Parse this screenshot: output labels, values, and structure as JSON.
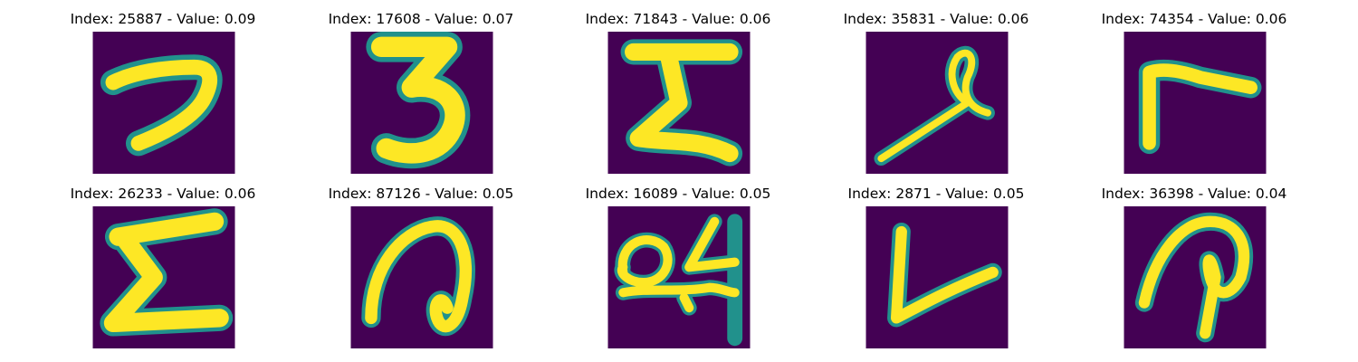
{
  "colors": {
    "background": "#440154",
    "mid": "#21918c",
    "stroke": "#fde725"
  },
  "panels": [
    {
      "index": "25887",
      "value": "0.09",
      "title": "Index: 25887 - Value: 0.09",
      "glyph": "7"
    },
    {
      "index": "17608",
      "value": "0.07",
      "title": "Index: 17608 - Value: 0.07",
      "glyph": "3"
    },
    {
      "index": "71843",
      "value": "0.06",
      "title": "Index: 71843 - Value: 0.06",
      "glyph": "sigma-bar"
    },
    {
      "index": "35831",
      "value": "0.06",
      "title": "Index: 35831 - Value: 0.06",
      "glyph": "loop-stroke"
    },
    {
      "index": "74354",
      "value": "0.06",
      "title": "Index: 74354 - Value: 0.06",
      "glyph": "r"
    },
    {
      "index": "26233",
      "value": "0.06",
      "title": "Index: 26233 - Value: 0.06",
      "glyph": "sigma"
    },
    {
      "index": "87126",
      "value": "0.05",
      "title": "Index: 87126 - Value: 0.05",
      "glyph": "a"
    },
    {
      "index": "16089",
      "value": "0.05",
      "title": "Index: 16089 - Value: 0.05",
      "glyph": "q4"
    },
    {
      "index": "2871",
      "value": "0.05",
      "title": "Index: 2871 - Value: 0.05",
      "glyph": "v"
    },
    {
      "index": "36398",
      "value": "0.04",
      "title": "Index: 36398 - Value: 0.04",
      "glyph": "p"
    }
  ]
}
